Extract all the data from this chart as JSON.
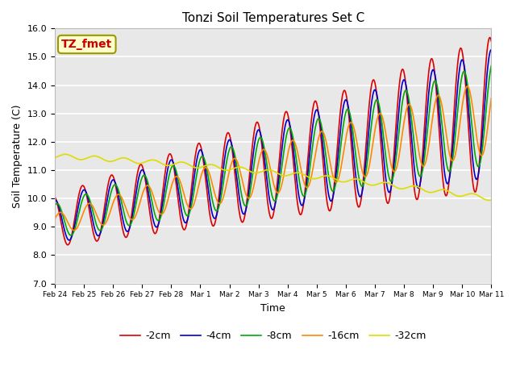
{
  "title": "Tonzi Soil Temperatures Set C",
  "xlabel": "Time",
  "ylabel": "Soil Temperature (C)",
  "ylim": [
    7.0,
    16.0
  ],
  "yticks": [
    7.0,
    8.0,
    9.0,
    10.0,
    11.0,
    12.0,
    13.0,
    14.0,
    15.0,
    16.0
  ],
  "xtick_labels": [
    "Feb 24",
    "Feb 25",
    "Feb 26",
    "Feb 27",
    "Feb 28",
    "Mar 1",
    "Mar 2",
    "Mar 3",
    "Mar 4",
    "Mar 5",
    "Mar 6",
    "Mar 7",
    "Mar 8",
    "Mar 9",
    "Mar 10",
    "Mar 11"
  ],
  "series_colors": [
    "#dd0000",
    "#0000cc",
    "#00aa00",
    "#ff8800",
    "#dddd00"
  ],
  "series_labels": [
    "-2cm",
    "-4cm",
    "-8cm",
    "-16cm",
    "-32cm"
  ],
  "line_width": 1.2,
  "plot_bg_color": "#e8e8e8",
  "annotation_text": "TZ_fmet",
  "annotation_color": "#cc0000",
  "annotation_bg": "#ffffcc",
  "annotation_edge": "#999900",
  "n_points": 1440,
  "time_days": 15.0
}
